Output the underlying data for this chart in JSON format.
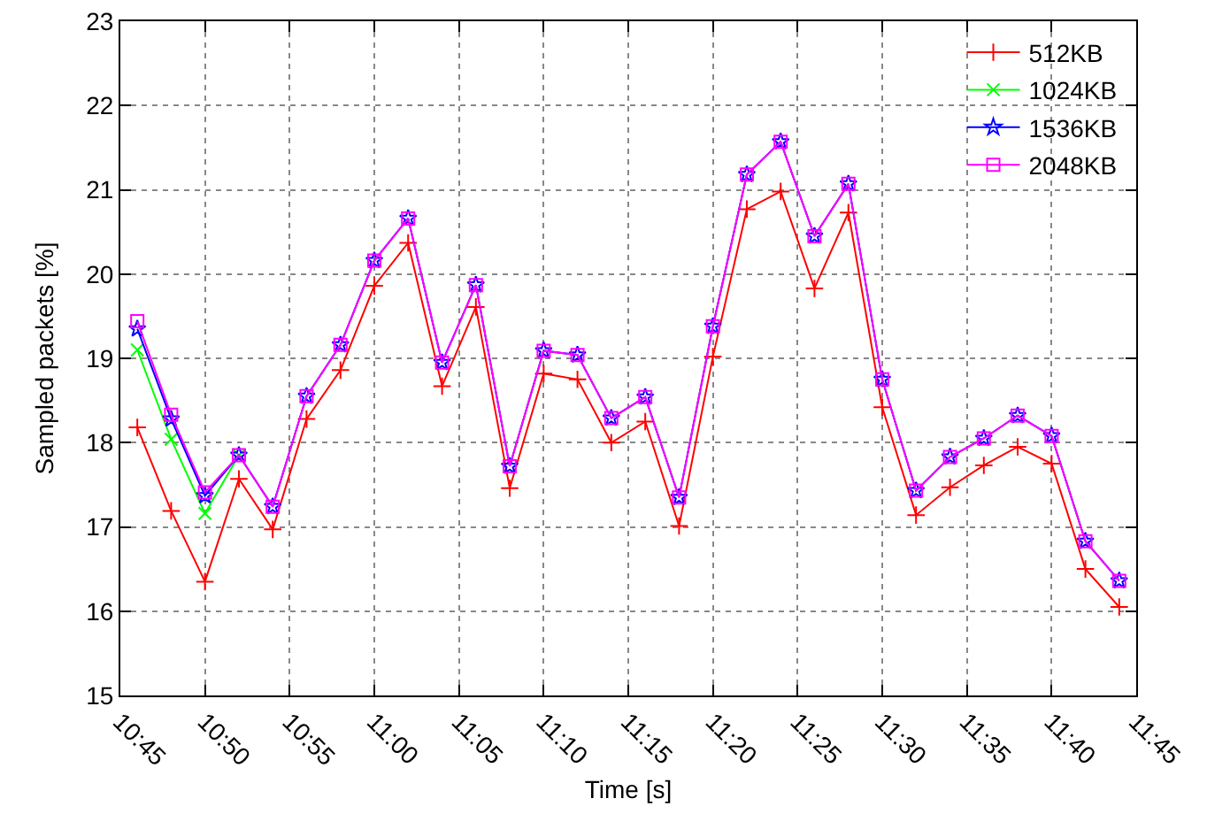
{
  "chart_data": {
    "type": "line",
    "xlabel": "Time [s]",
    "ylabel": "Sampled packets [%]",
    "x": [
      10.7667,
      10.8,
      10.8333,
      10.8667,
      10.9,
      10.9333,
      10.9667,
      11,
      11.0333,
      11.0667,
      11.1,
      11.1333,
      11.1667,
      11.2,
      11.2333,
      11.2667,
      11.3,
      11.3333,
      11.3667,
      11.4,
      11.4333,
      11.4667,
      11.5,
      11.5333,
      11.5667,
      11.6,
      11.6333,
      11.6667,
      11.7,
      11.7333
    ],
    "series": [
      {
        "name": "512KB",
        "color": "#ff0000",
        "marker": "cross",
        "values": [
          18.18,
          17.19,
          16.35,
          17.57,
          16.97,
          18.28,
          18.86,
          19.86,
          20.37,
          18.67,
          19.61,
          17.46,
          18.82,
          18.75,
          18.0,
          18.25,
          17.01,
          19.02,
          20.77,
          20.98,
          19.83,
          20.73,
          18.42,
          17.14,
          17.47,
          17.73,
          17.95,
          17.75,
          16.5,
          16.05
        ]
      },
      {
        "name": "1024KB",
        "color": "#00ff00",
        "marker": "x",
        "values": [
          19.1,
          18.04,
          17.16,
          17.85,
          null,
          null,
          null,
          null,
          null,
          null,
          null,
          null,
          null,
          null,
          null,
          null,
          null,
          null,
          null,
          null,
          null,
          null,
          null,
          null,
          null,
          null,
          null,
          null,
          null,
          null
        ]
      },
      {
        "name": "1536KB",
        "color": "#0000ff",
        "marker": "star",
        "values": [
          19.35,
          18.28,
          17.37,
          17.85,
          17.24,
          18.55,
          19.16,
          20.16,
          20.66,
          18.95,
          19.87,
          17.72,
          19.09,
          19.04,
          18.29,
          18.54,
          17.35,
          19.38,
          21.18,
          21.57,
          20.45,
          21.07,
          18.75,
          17.43,
          17.83,
          18.05,
          18.32,
          18.08,
          16.83,
          16.36
        ]
      },
      {
        "name": "2048KB",
        "color": "#ff00ff",
        "marker": "square",
        "values": [
          19.44,
          18.33,
          17.41,
          17.85,
          17.24,
          18.55,
          19.16,
          20.16,
          20.66,
          18.95,
          19.87,
          17.72,
          19.09,
          19.04,
          18.29,
          18.54,
          17.35,
          19.38,
          21.18,
          21.57,
          20.45,
          21.07,
          18.75,
          17.43,
          17.83,
          18.05,
          18.32,
          18.08,
          16.83,
          16.36
        ]
      }
    ],
    "xlim": [
      10.75,
      11.75
    ],
    "xticks": [
      {
        "value": 10.75,
        "label": "10:45"
      },
      {
        "value": 10.8333,
        "label": "10:50"
      },
      {
        "value": 10.9167,
        "label": "10:55"
      },
      {
        "value": 11,
        "label": "11:00"
      },
      {
        "value": 11.0833,
        "label": "11:05"
      },
      {
        "value": 11.1667,
        "label": "11:10"
      },
      {
        "value": 11.25,
        "label": "11:15"
      },
      {
        "value": 11.3333,
        "label": "11:20"
      },
      {
        "value": 11.4167,
        "label": "11:25"
      },
      {
        "value": 11.5,
        "label": "11:30"
      },
      {
        "value": 11.5833,
        "label": "11:35"
      },
      {
        "value": 11.6667,
        "label": "11:40"
      },
      {
        "value": 11.75,
        "label": "11:45"
      }
    ],
    "ylim": [
      15,
      23
    ],
    "yticks": [
      15,
      16,
      17,
      18,
      19,
      20,
      21,
      22,
      23
    ],
    "grid": true,
    "legend": "top right",
    "line_style": "solid"
  }
}
